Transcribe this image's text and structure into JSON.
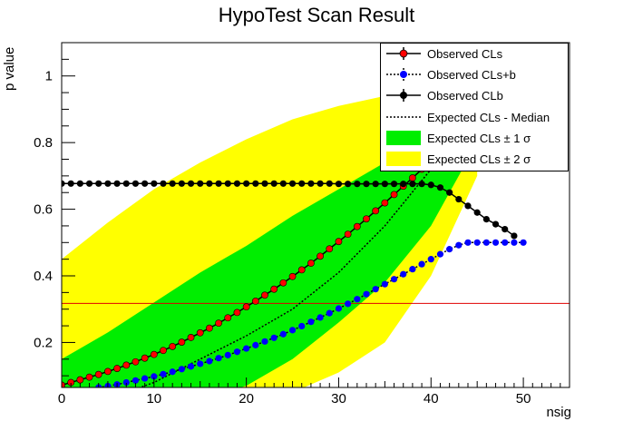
{
  "title": "HypoTest Scan Result",
  "chart_data": {
    "type": "line",
    "xlabel": "nsig",
    "ylabel": "p value",
    "xlim": [
      0,
      55
    ],
    "ylim": [
      0.065,
      1.1
    ],
    "x_ticks": [
      0,
      10,
      20,
      30,
      40,
      50
    ],
    "y_ticks": [
      0.2,
      0.4,
      0.6,
      0.8,
      1
    ],
    "reference_line": {
      "y": 0.3173,
      "color": "#e00000"
    },
    "legend_position": "top-right",
    "series": [
      {
        "name": "Observed CLs",
        "color": "#ff0000",
        "marker": "circle",
        "x": [
          0,
          1,
          2,
          3,
          4,
          5,
          6,
          7,
          8,
          9,
          10,
          11,
          12,
          13,
          14,
          15,
          16,
          17,
          18,
          19,
          20,
          21,
          22,
          23,
          24,
          25,
          26,
          27,
          28,
          29,
          30,
          31,
          32,
          33,
          34,
          35,
          36,
          37,
          38,
          39,
          40
        ],
        "y": [
          0.072,
          0.08,
          0.088,
          0.096,
          0.104,
          0.113,
          0.122,
          0.132,
          0.142,
          0.153,
          0.164,
          0.176,
          0.188,
          0.201,
          0.215,
          0.229,
          0.243,
          0.258,
          0.274,
          0.29,
          0.307,
          0.324,
          0.342,
          0.36,
          0.379,
          0.398,
          0.418,
          0.438,
          0.459,
          0.481,
          0.503,
          0.525,
          0.548,
          0.571,
          0.595,
          0.619,
          0.644,
          0.669,
          0.694,
          0.72,
          0.746
        ]
      },
      {
        "name": "Observed CLs+b",
        "color": "#0000ff",
        "marker": "circle",
        "x": [
          4,
          5,
          6,
          7,
          8,
          9,
          10,
          11,
          12,
          13,
          14,
          15,
          16,
          17,
          18,
          19,
          20,
          21,
          22,
          23,
          24,
          25,
          26,
          27,
          28,
          29,
          30,
          31,
          32,
          33,
          34,
          35,
          36,
          37,
          38,
          39,
          40,
          41,
          42,
          43,
          44,
          45,
          46,
          47,
          48,
          49,
          50
        ],
        "y": [
          0.065,
          0.069,
          0.074,
          0.08,
          0.086,
          0.092,
          0.098,
          0.105,
          0.112,
          0.12,
          0.128,
          0.136,
          0.144,
          0.153,
          0.162,
          0.172,
          0.182,
          0.192,
          0.203,
          0.214,
          0.225,
          0.237,
          0.249,
          0.262,
          0.275,
          0.288,
          0.302,
          0.316,
          0.33,
          0.345,
          0.36,
          0.375,
          0.39,
          0.405,
          0.42,
          0.435,
          0.45,
          0.465,
          0.48,
          0.492,
          0.5,
          0.5,
          0.5,
          0.5,
          0.5,
          0.5,
          0.5
        ]
      },
      {
        "name": "Observed CLb",
        "color": "#000000",
        "marker": "circle",
        "x": [
          0,
          1,
          2,
          3,
          4,
          5,
          6,
          7,
          8,
          9,
          10,
          11,
          12,
          13,
          14,
          15,
          16,
          17,
          18,
          19,
          20,
          21,
          22,
          23,
          24,
          25,
          26,
          27,
          28,
          29,
          30,
          31,
          32,
          33,
          34,
          35,
          36,
          37,
          38,
          39,
          40,
          41,
          42,
          43,
          44,
          45,
          46,
          47,
          48,
          49
        ],
        "y": [
          0.677,
          0.677,
          0.677,
          0.677,
          0.677,
          0.677,
          0.677,
          0.677,
          0.677,
          0.677,
          0.677,
          0.677,
          0.677,
          0.677,
          0.677,
          0.677,
          0.677,
          0.677,
          0.677,
          0.677,
          0.677,
          0.677,
          0.677,
          0.677,
          0.677,
          0.677,
          0.677,
          0.677,
          0.677,
          0.677,
          0.676,
          0.676,
          0.676,
          0.676,
          0.676,
          0.676,
          0.676,
          0.676,
          0.676,
          0.676,
          0.673,
          0.665,
          0.65,
          0.63,
          0.61,
          0.59,
          0.57,
          0.555,
          0.54,
          0.52
        ]
      },
      {
        "name": "Expected CLs - Median",
        "color": "#000000",
        "style": "dotted",
        "x": [
          0,
          5,
          10,
          15,
          20,
          25,
          30,
          35,
          40
        ],
        "y": [
          0.0,
          0.03,
          0.08,
          0.15,
          0.22,
          0.3,
          0.41,
          0.55,
          0.72
        ]
      }
    ],
    "bands": [
      {
        "name": "Expected CLs ± 2 σ",
        "color": "#ffff00",
        "x": [
          0,
          5,
          10,
          15,
          20,
          25,
          30,
          35,
          40,
          45
        ],
        "upper": [
          0.45,
          0.56,
          0.66,
          0.74,
          0.81,
          0.87,
          0.91,
          0.94,
          0.97,
          1.0
        ],
        "lower": [
          0.0,
          0.0,
          0.0,
          0.005,
          0.02,
          0.05,
          0.11,
          0.2,
          0.4,
          0.7
        ]
      },
      {
        "name": "Expected CLs ± 1 σ",
        "color": "#00ee00",
        "x": [
          0,
          5,
          10,
          15,
          20,
          25,
          30,
          35,
          40,
          45
        ],
        "upper": [
          0.15,
          0.23,
          0.32,
          0.41,
          0.49,
          0.58,
          0.66,
          0.74,
          0.82,
          0.9
        ],
        "lower": [
          0.0,
          0.0,
          0.0,
          0.03,
          0.07,
          0.15,
          0.26,
          0.38,
          0.55,
          0.8
        ]
      }
    ]
  },
  "legend": {
    "entries": [
      {
        "label": "Observed CLs"
      },
      {
        "label": "Observed CLs+b"
      },
      {
        "label": "Observed CLb"
      },
      {
        "label": "Expected CLs - Median"
      },
      {
        "label": "Expected CLs ± 1 σ"
      },
      {
        "label": "Expected CLs ± 2 σ"
      }
    ]
  }
}
